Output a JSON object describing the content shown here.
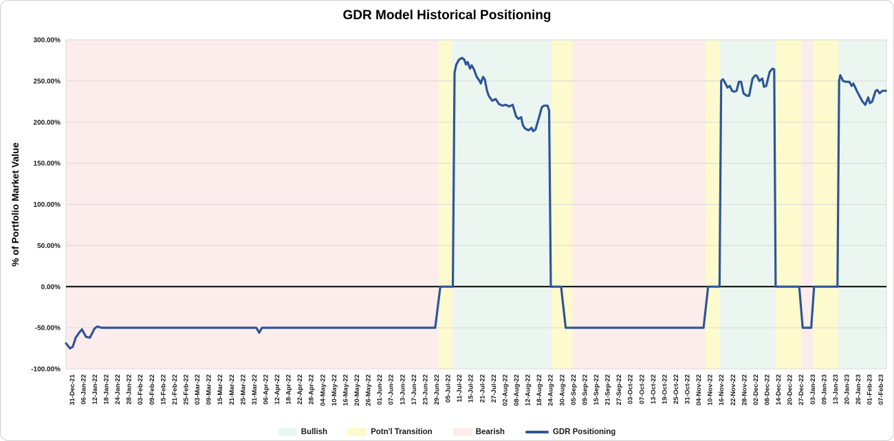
{
  "title": "GDR Model Historical Positioning",
  "y_axis": {
    "title": "% of Portfolio Market Value",
    "max": 300,
    "min": -100,
    "step": 50,
    "tick_labels": [
      "300.00%",
      "250.00%",
      "200.00%",
      "150.00%",
      "100.00%",
      "50.00%",
      "0.00%",
      "-50.00%",
      "-100.00%"
    ]
  },
  "colors": {
    "bullish": "#ebf6f0",
    "transition": "#fdfacd",
    "bearish": "#fcecec",
    "line": "#2e5597",
    "gridline": "#d9d9d9",
    "zero_axis": "#000000",
    "tick_text": "#1a1a1a"
  },
  "legend": [
    {
      "label": "Bullish",
      "swatch": "fill",
      "color": "#ebf6f0"
    },
    {
      "label": "Potn'l Transition",
      "swatch": "fill",
      "color": "#fdfacd"
    },
    {
      "label": "Bearish",
      "swatch": "fill",
      "color": "#fcecec"
    },
    {
      "label": "GDR Positioning",
      "swatch": "line",
      "color": "#2e5597"
    }
  ],
  "chart_data": {
    "type": "line",
    "title": "GDR Model Historical Positioning",
    "xlabel": "",
    "ylabel": "% of Portfolio Market Value",
    "ylim": [
      -100,
      300
    ],
    "grid": "horizontal",
    "legend_position": "bottom",
    "categories": [
      "31-Dec-21",
      "06-Jan-22",
      "12-Jan-22",
      "18-Jan-22",
      "24-Jan-22",
      "28-Jan-22",
      "03-Feb-22",
      "09-Feb-22",
      "15-Feb-22",
      "21-Feb-22",
      "25-Feb-22",
      "03-Mar-22",
      "09-Mar-22",
      "15-Mar-22",
      "21-Mar-22",
      "25-Mar-22",
      "31-Mar-22",
      "06-Apr-22",
      "12-Apr-22",
      "18-Apr-22",
      "22-Apr-22",
      "28-Apr-22",
      "04-May-22",
      "10-May-22",
      "16-May-22",
      "20-May-22",
      "26-May-22",
      "01-Jun-22",
      "07-Jun-22",
      "13-Jun-22",
      "17-Jun-22",
      "23-Jun-22",
      "29-Jun-22",
      "05-Jul-22",
      "11-Jul-22",
      "15-Jul-22",
      "21-Jul-22",
      "27-Jul-22",
      "02-Aug-22",
      "08-Aug-22",
      "12-Aug-22",
      "18-Aug-22",
      "24-Aug-22",
      "30-Aug-22",
      "05-Sep-22",
      "09-Sep-22",
      "15-Sep-22",
      "21-Sep-22",
      "27-Sep-22",
      "03-Oct-22",
      "07-Oct-22",
      "13-Oct-22",
      "19-Oct-22",
      "25-Oct-22",
      "31-Oct-22",
      "04-Nov-22",
      "10-Nov-22",
      "16-Nov-22",
      "22-Nov-22",
      "28-Nov-22",
      "02-Dec-22",
      "08-Dec-22",
      "14-Dec-22",
      "20-Dec-22",
      "27-Dec-22",
      "03-Jan-23",
      "09-Jan-23",
      "13-Jan-23",
      "20-Jan-23",
      "26-Jan-23",
      "01-Feb-23",
      "07-Feb-23"
    ],
    "regions": [
      {
        "type": "bearish",
        "label": "Bearish",
        "start": -0.5,
        "end": 32.2
      },
      {
        "type": "transition",
        "label": "Potn'l Transition",
        "start": 32.2,
        "end": 33.4
      },
      {
        "type": "bullish",
        "label": "Bullish",
        "start": 33.4,
        "end": 42.15
      },
      {
        "type": "transition",
        "label": "Potn'l Transition",
        "start": 42.15,
        "end": 43.95
      },
      {
        "type": "bearish",
        "label": "Bearish",
        "start": 43.95,
        "end": 55.6
      },
      {
        "type": "transition",
        "label": "Potn'l Transition",
        "start": 55.6,
        "end": 56.9
      },
      {
        "type": "bullish",
        "label": "Bullish",
        "start": 56.9,
        "end": 61.8
      },
      {
        "type": "transition",
        "label": "Potn'l Transition",
        "start": 61.8,
        "end": 64.0
      },
      {
        "type": "bearish",
        "label": "Bearish",
        "start": 64.0,
        "end": 65.05
      },
      {
        "type": "transition",
        "label": "Potn'l Transition",
        "start": 65.05,
        "end": 67.25
      },
      {
        "type": "bullish",
        "label": "Bullish",
        "start": 67.25,
        "end": 71.5
      }
    ],
    "series": [
      {
        "name": "GDR Positioning",
        "color": "#2e5597",
        "points": [
          [
            -0.5,
            -69
          ],
          [
            -0.15,
            -75
          ],
          [
            0.1,
            -73
          ],
          [
            0.35,
            -62
          ],
          [
            0.65,
            -56
          ],
          [
            0.9,
            -52
          ],
          [
            1.25,
            -61
          ],
          [
            1.6,
            -62
          ],
          [
            2.0,
            -51
          ],
          [
            2.25,
            -48.5
          ],
          [
            2.6,
            -50
          ],
          [
            16.2,
            -50
          ],
          [
            16.45,
            -56
          ],
          [
            16.7,
            -50
          ],
          [
            31.9,
            -50
          ],
          [
            32.35,
            0
          ],
          [
            33.45,
            0
          ],
          [
            33.6,
            260
          ],
          [
            33.75,
            270
          ],
          [
            34.0,
            276
          ],
          [
            34.25,
            278
          ],
          [
            34.45,
            276
          ],
          [
            34.6,
            270
          ],
          [
            34.75,
            273
          ],
          [
            34.95,
            265
          ],
          [
            35.1,
            269
          ],
          [
            35.3,
            264
          ],
          [
            35.55,
            255
          ],
          [
            35.8,
            250
          ],
          [
            35.9,
            247
          ],
          [
            36.1,
            255
          ],
          [
            36.25,
            252
          ],
          [
            36.45,
            238
          ],
          [
            36.6,
            232
          ],
          [
            36.9,
            226
          ],
          [
            37.2,
            228
          ],
          [
            37.5,
            222
          ],
          [
            37.8,
            220
          ],
          [
            38.1,
            221
          ],
          [
            38.4,
            219
          ],
          [
            38.7,
            221
          ],
          [
            39.0,
            207
          ],
          [
            39.2,
            204
          ],
          [
            39.45,
            206
          ],
          [
            39.6,
            196
          ],
          [
            39.8,
            192
          ],
          [
            40.1,
            190
          ],
          [
            40.35,
            193
          ],
          [
            40.5,
            189
          ],
          [
            40.7,
            191
          ],
          [
            41.0,
            205
          ],
          [
            41.25,
            218
          ],
          [
            41.45,
            220
          ],
          [
            41.75,
            220
          ],
          [
            41.9,
            214
          ],
          [
            42.05,
            0
          ],
          [
            42.95,
            0
          ],
          [
            43.35,
            -50
          ],
          [
            55.45,
            -50
          ],
          [
            55.85,
            0
          ],
          [
            56.85,
            0
          ],
          [
            57.0,
            250
          ],
          [
            57.15,
            252
          ],
          [
            57.3,
            249
          ],
          [
            57.55,
            242
          ],
          [
            57.75,
            244
          ],
          [
            57.95,
            238
          ],
          [
            58.15,
            237
          ],
          [
            58.35,
            238
          ],
          [
            58.55,
            249
          ],
          [
            58.75,
            249
          ],
          [
            58.95,
            235
          ],
          [
            59.25,
            232
          ],
          [
            59.45,
            232
          ],
          [
            59.75,
            253
          ],
          [
            60.0,
            257
          ],
          [
            60.15,
            256
          ],
          [
            60.35,
            250
          ],
          [
            60.6,
            253
          ],
          [
            60.75,
            243
          ],
          [
            60.95,
            244
          ],
          [
            61.25,
            261
          ],
          [
            61.5,
            265
          ],
          [
            61.65,
            264
          ],
          [
            61.78,
            0
          ],
          [
            63.85,
            0
          ],
          [
            64.15,
            -50
          ],
          [
            64.9,
            -50
          ],
          [
            65.15,
            0
          ],
          [
            67.2,
            0
          ],
          [
            67.35,
            250
          ],
          [
            67.45,
            257
          ],
          [
            67.7,
            250
          ],
          [
            68.0,
            249
          ],
          [
            68.25,
            249
          ],
          [
            68.45,
            244
          ],
          [
            68.6,
            247
          ],
          [
            68.9,
            238
          ],
          [
            69.2,
            230
          ],
          [
            69.4,
            225
          ],
          [
            69.65,
            221
          ],
          [
            69.9,
            230
          ],
          [
            70.05,
            223
          ],
          [
            70.25,
            225
          ],
          [
            70.55,
            238
          ],
          [
            70.7,
            239
          ],
          [
            70.9,
            235
          ],
          [
            71.15,
            238
          ],
          [
            71.45,
            238
          ]
        ]
      }
    ]
  }
}
